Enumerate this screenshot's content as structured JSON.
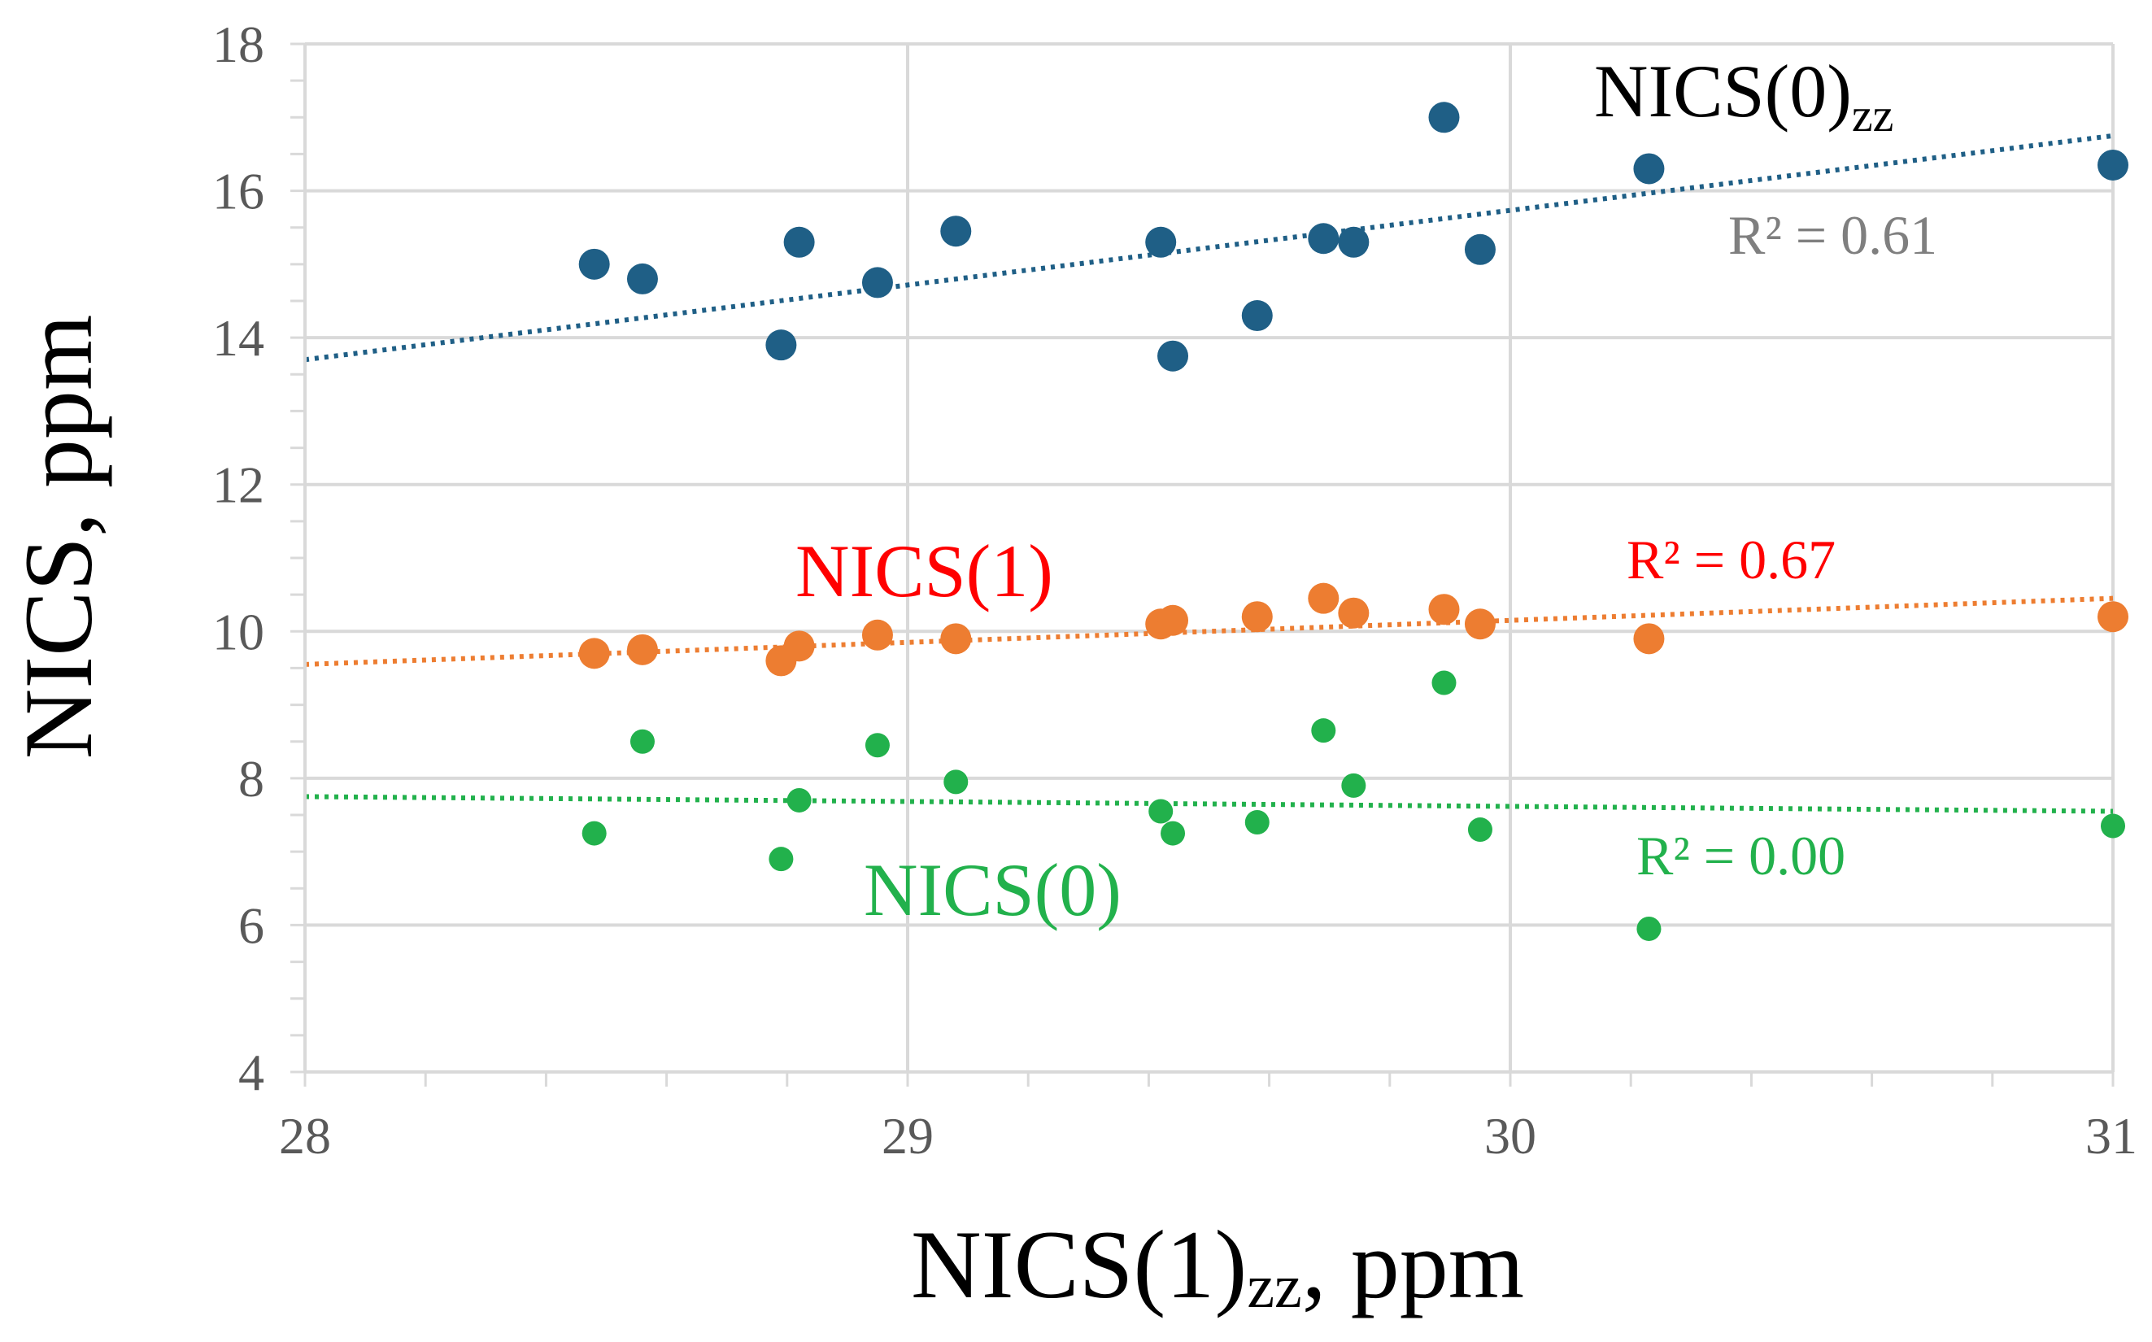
{
  "chart_data": {
    "type": "scatter",
    "xlabel": "NICS(1)",
    "xlabel_sub": "zz",
    "xlabel_suffix": ", ppm",
    "ylabel": "NICS, ppm",
    "xlim": [
      28,
      31
    ],
    "ylim": [
      4,
      18
    ],
    "x_ticks": [
      28,
      29,
      30,
      31
    ],
    "y_ticks": [
      4,
      6,
      8,
      10,
      12,
      14,
      16,
      18
    ],
    "x_minor_step": 0.2,
    "y_minor_step": 0.5,
    "grid": true,
    "x": [
      28.48,
      28.56,
      28.79,
      28.82,
      28.95,
      29.08,
      29.42,
      29.44,
      29.58,
      29.69,
      29.74,
      29.89,
      29.95,
      30.23,
      31.0
    ],
    "series": [
      {
        "name": "NICS(0)zz",
        "label": "NICS(0)",
        "label_sub": "zz",
        "color": "#1f5f86",
        "label_color": "#000000",
        "r2_text": "R² = 0.61",
        "r2_color": "#7f7f7f",
        "values": [
          15.0,
          14.8,
          13.9,
          15.3,
          14.75,
          15.45,
          15.3,
          13.75,
          14.3,
          15.35,
          15.3,
          17.0,
          15.2,
          16.3,
          16.35
        ],
        "trend": [
          [
            28,
            13.7
          ],
          [
            31,
            16.75
          ]
        ]
      },
      {
        "name": "NICS(1)",
        "label": "NICS(1)",
        "color": "#ed7d31",
        "label_color": "#ff0000",
        "r2_text": "R² = 0.67",
        "r2_color": "#ff0000",
        "values": [
          9.7,
          9.75,
          9.6,
          9.8,
          9.95,
          9.9,
          10.1,
          10.15,
          10.2,
          10.45,
          10.25,
          10.3,
          10.1,
          9.9,
          10.2
        ],
        "trend": [
          [
            28,
            9.55
          ],
          [
            31,
            10.45
          ]
        ]
      },
      {
        "name": "NICS(0)",
        "label": "NICS(0)",
        "color": "#22b14c",
        "label_color": "#22b14c",
        "r2_text": "R² = 0.00",
        "r2_color": "#22b14c",
        "values": [
          7.25,
          8.5,
          6.9,
          7.7,
          8.45,
          7.95,
          7.55,
          7.25,
          7.4,
          8.65,
          7.9,
          9.3,
          7.3,
          5.95,
          7.35
        ],
        "trend": [
          [
            28,
            7.75
          ],
          [
            31,
            7.55
          ]
        ]
      }
    ]
  }
}
